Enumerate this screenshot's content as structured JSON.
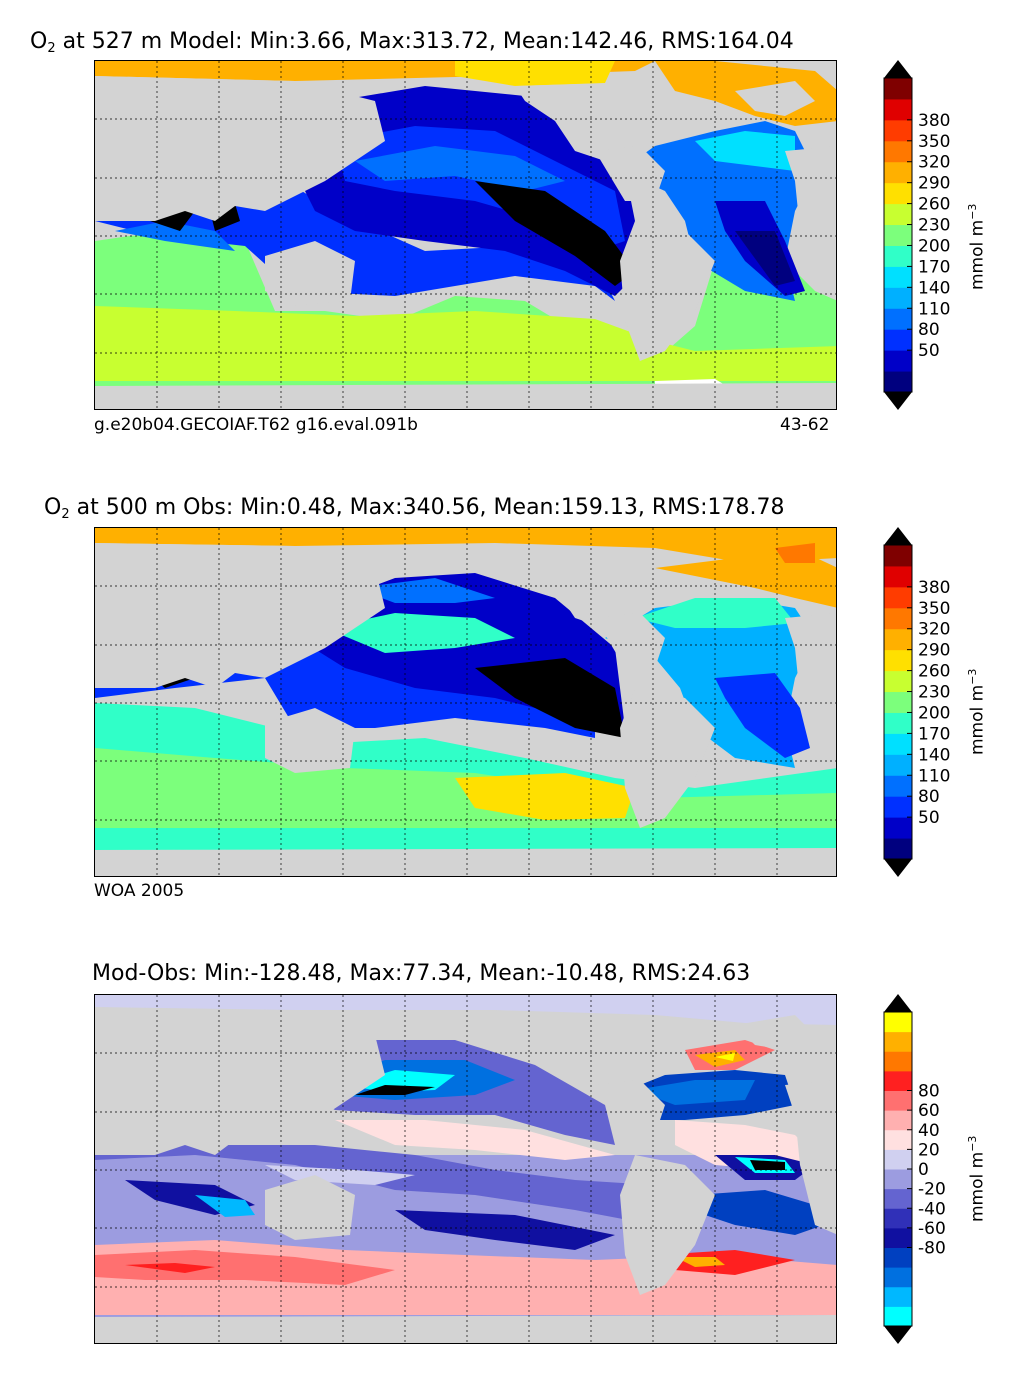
{
  "panels": [
    {
      "key": "model",
      "title_prefix": "O",
      "title_sub": "2",
      "title_rest": "at 527 m Model: Min:3.66, Max:313.72, Mean:142.46, RMS:164.04",
      "note_left": "g.e20b04.GECOIAF.T62 g16.eval.091b",
      "note_right": "43-62",
      "colorbar_ticks": [
        "50",
        "80",
        "110",
        "140",
        "170",
        "200",
        "230",
        "260",
        "290",
        "320",
        "350",
        "380"
      ],
      "colorbar_unit_base": "mmol m",
      "colorbar_unit_exp": "−3",
      "colors": [
        "#00007f",
        "#0000c8",
        "#0030ff",
        "#0070ff",
        "#00b0ff",
        "#00e0ff",
        "#30ffc8",
        "#7cff7c",
        "#c8ff30",
        "#ffe000",
        "#ffb000",
        "#ff7800",
        "#ff3c00",
        "#e00000",
        "#7f0000"
      ]
    },
    {
      "key": "obs",
      "title_prefix": "O",
      "title_sub": "2",
      "title_rest": "at 500 m Obs: Min:0.48, Max:340.56, Mean:159.13, RMS:178.78",
      "note_left": "WOA 2005",
      "note_right": "",
      "colorbar_ticks": [
        "50",
        "80",
        "110",
        "140",
        "170",
        "200",
        "230",
        "260",
        "290",
        "320",
        "350",
        "380"
      ],
      "colorbar_unit_base": "mmol m",
      "colorbar_unit_exp": "−3",
      "colors": [
        "#00007f",
        "#0000c8",
        "#0030ff",
        "#0070ff",
        "#00b0ff",
        "#00e0ff",
        "#30ffc8",
        "#7cff7c",
        "#c8ff30",
        "#ffe000",
        "#ffb000",
        "#ff7800",
        "#ff3c00",
        "#e00000",
        "#7f0000"
      ]
    },
    {
      "key": "diff",
      "title_prefix": "",
      "title_sub": "",
      "title_rest": "Mod-Obs: Min:-128.48, Max:77.34, Mean:-10.48, RMS:24.63",
      "note_left": "",
      "note_right": "",
      "colorbar_ticks": [
        "-80",
        "-60",
        "-40",
        "-20",
        "0",
        "20",
        "40",
        "60",
        "80"
      ],
      "colorbar_unit_base": "mmol m",
      "colorbar_unit_exp": "−3",
      "colors": [
        "#00ffff",
        "#00b8ff",
        "#0070e0",
        "#0040c0",
        "#1010a0",
        "#3030b8",
        "#6464d0",
        "#9c9ce0",
        "#d0d0f0",
        "#ffe0e0",
        "#ffb0b0",
        "#ff7070",
        "#ff2020",
        "#ff7800",
        "#ffb000",
        "#ffff00"
      ]
    }
  ],
  "chart_data": [
    {
      "type": "heatmap",
      "title": "O2 at 527 m Model: Min:3.66, Max:313.72, Mean:142.46, RMS:164.04",
      "variable": "O2",
      "depth": "527 m",
      "source": "Model",
      "stats": {
        "min": 3.66,
        "max": 313.72,
        "mean": 142.46,
        "rms": 164.04
      },
      "colorbar_levels": [
        50,
        80,
        110,
        140,
        170,
        200,
        230,
        260,
        290,
        320,
        350,
        380
      ],
      "colorbar_label": "mmol m^-3",
      "colorbar_extend": "both",
      "land_color": "#d3d3d3",
      "grid": true,
      "annotations": [
        "g.e20b04.GECOIAF.T62 g16.eval.091b",
        "43-62"
      ]
    },
    {
      "type": "heatmap",
      "title": "O2 at 500 m Obs: Min:0.48, Max:340.56, Mean:159.13, RMS:178.78",
      "variable": "O2",
      "depth": "500 m",
      "source": "Obs",
      "stats": {
        "min": 0.48,
        "max": 340.56,
        "mean": 159.13,
        "rms": 178.78
      },
      "colorbar_levels": [
        50,
        80,
        110,
        140,
        170,
        200,
        230,
        260,
        290,
        320,
        350,
        380
      ],
      "colorbar_label": "mmol m^-3",
      "colorbar_extend": "both",
      "land_color": "#d3d3d3",
      "grid": true,
      "annotations": [
        "WOA 2005"
      ]
    },
    {
      "type": "heatmap",
      "title": "Mod-Obs: Min:-128.48, Max:77.34, Mean:-10.48, RMS:24.63",
      "variable": "Mod-Obs",
      "stats": {
        "min": -128.48,
        "max": 77.34,
        "mean": -10.48,
        "rms": 24.63
      },
      "colorbar_levels": [
        -80,
        -60,
        -40,
        -20,
        0,
        20,
        40,
        60,
        80
      ],
      "colorbar_label": "mmol m^-3",
      "colorbar_extend": "both",
      "land_color": "#d3d3d3",
      "grid": true
    }
  ]
}
